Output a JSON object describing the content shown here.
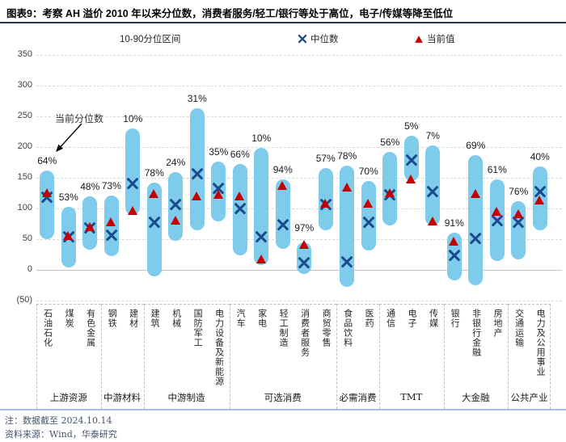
{
  "title": "图表9：考察 AH 溢价 2010 年以来分位数，消费者服务/轻工/银行等处于高位，电子/传媒等降至低位",
  "annotation": {
    "text": "当前分位数"
  },
  "notes": [
    "注：数据截至 2024.10.14",
    "资料来源：Wind，华泰研究"
  ],
  "colors": {
    "bar": "#7FCBEC",
    "median_marker": "#1A4A8C",
    "current_marker": "#C40000",
    "title_rule": "#1F3864",
    "note_rule": "#A9BEDC"
  },
  "chart_data": {
    "type": "range-bar",
    "title": "AH溢价2010年以来分位数",
    "legend": {
      "range": "10-90分位区间",
      "median": "中位数",
      "current": "当前值"
    },
    "legend_position": "top",
    "grid": "horizontal-dashed",
    "ylim": [
      -50,
      350
    ],
    "yticks": [
      350,
      300,
      250,
      200,
      150,
      100,
      50,
      0,
      -50
    ],
    "ytick_labels": [
      "350",
      "300",
      "250",
      "200",
      "150",
      "100",
      "50",
      "0",
      "(50)"
    ],
    "groups": [
      {
        "name": "上游资源",
        "count": 3
      },
      {
        "name": "中游材料",
        "count": 2
      },
      {
        "name": "中游制造",
        "count": 4
      },
      {
        "name": "可选消费",
        "count": 5
      },
      {
        "name": "必需消费",
        "count": 2
      },
      {
        "name": "TMT",
        "count": 3
      },
      {
        "name": "大金融",
        "count": 3
      },
      {
        "name": "公共产业",
        "count": 2
      }
    ],
    "series": [
      {
        "industry": "石油石化",
        "group": "上游资源",
        "percentile_label": "64%",
        "p10": 50,
        "p90": 162,
        "median": 118,
        "current": 126
      },
      {
        "industry": "煤炭",
        "group": "上游资源",
        "percentile_label": "53%",
        "p10": 4,
        "p90": 102,
        "median": 54,
        "current": 56
      },
      {
        "industry": "有色金属",
        "group": "上游资源",
        "percentile_label": "48%",
        "p10": 33,
        "p90": 120,
        "median": 68,
        "current": 70
      },
      {
        "industry": "钢铁",
        "group": "中游材料",
        "percentile_label": "73%",
        "p10": 23,
        "p90": 121,
        "median": 56,
        "current": 78
      },
      {
        "industry": "建材",
        "group": "中游材料",
        "percentile_label": "10%",
        "p10": 90,
        "p90": 230,
        "median": 141,
        "current": 97
      },
      {
        "industry": "建筑",
        "group": "中游制造",
        "percentile_label": "78%",
        "p10": -11,
        "p90": 142,
        "median": 78,
        "current": 124
      },
      {
        "industry": "机械",
        "group": "中游制造",
        "percentile_label": "24%",
        "p10": 48,
        "p90": 159,
        "median": 107,
        "current": 81
      },
      {
        "industry": "国防军工",
        "group": "中游制造",
        "percentile_label": "31%",
        "p10": 64,
        "p90": 263,
        "median": 157,
        "current": 120
      },
      {
        "industry": "电力设备及新能源",
        "group": "中游制造",
        "percentile_label": "35%",
        "p10": 79,
        "p90": 176,
        "median": 133,
        "current": 123
      },
      {
        "industry": "汽车",
        "group": "可选消费",
        "percentile_label": "66%",
        "p10": 24,
        "p90": 173,
        "median": 100,
        "current": 121
      },
      {
        "industry": "家电",
        "group": "可选消费",
        "percentile_label": "10%",
        "p10": 8,
        "p90": 199,
        "median": 54,
        "current": 18
      },
      {
        "industry": "轻工制造",
        "group": "可选消费",
        "percentile_label": "94%",
        "p10": 34,
        "p90": 147,
        "median": 74,
        "current": 137
      },
      {
        "industry": "消费者服务",
        "group": "可选消费",
        "percentile_label": "97%",
        "p10": -6,
        "p90": 45,
        "median": 12,
        "current": 42
      },
      {
        "industry": "商贸零售",
        "group": "可选消费",
        "percentile_label": "57%",
        "p10": 64,
        "p90": 166,
        "median": 106,
        "current": 109
      },
      {
        "industry": "食品饮料",
        "group": "必需消费",
        "percentile_label": "78%",
        "p10": -27,
        "p90": 170,
        "median": 13,
        "current": 135
      },
      {
        "industry": "医药",
        "group": "必需消费",
        "percentile_label": "70%",
        "p10": 32,
        "p90": 145,
        "median": 77,
        "current": 109
      },
      {
        "industry": "通信",
        "group": "TMT",
        "percentile_label": "56%",
        "p10": 73,
        "p90": 192,
        "median": 122,
        "current": 126
      },
      {
        "industry": "电子",
        "group": "TMT",
        "percentile_label": "5%",
        "p10": 145,
        "p90": 218,
        "median": 179,
        "current": 148
      },
      {
        "industry": "传媒",
        "group": "TMT",
        "percentile_label": "7%",
        "p10": 73,
        "p90": 203,
        "median": 127,
        "current": 80
      },
      {
        "industry": "银行",
        "group": "大金融",
        "percentile_label": "91%",
        "p10": -17,
        "p90": 60,
        "median": 24,
        "current": 47
      },
      {
        "industry": "非银行金融",
        "group": "大金融",
        "percentile_label": "69%",
        "p10": -25,
        "p90": 187,
        "median": 51,
        "current": 125
      },
      {
        "industry": "房地产",
        "group": "大金融",
        "percentile_label": "61%",
        "p10": 15,
        "p90": 148,
        "median": 80,
        "current": 96
      },
      {
        "industry": "交通运输",
        "group": "公共产业",
        "percentile_label": "76%",
        "p10": 17,
        "p90": 112,
        "median": 77,
        "current": 92
      },
      {
        "industry": "电力及公用事业",
        "group": "公共产业",
        "percentile_label": "40%",
        "p10": 64,
        "p90": 168,
        "median": 127,
        "current": 114
      }
    ]
  }
}
